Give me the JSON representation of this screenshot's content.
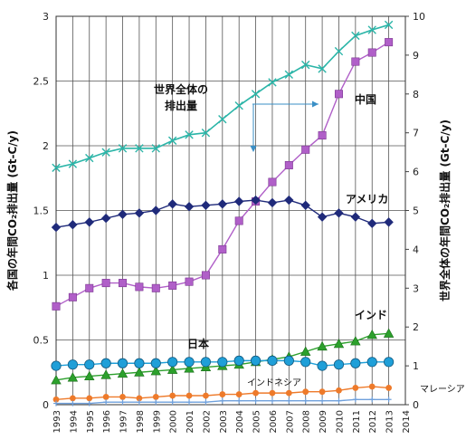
{
  "chart_data": {
    "type": "line",
    "title": "",
    "xlabel": "",
    "ylabel_left": "各国の年間CO₂排出量 (Gt-C/y)",
    "ylabel_right": "世界全体の年間CO₂排出量 (Gt-C/y)",
    "x": [
      1993,
      1994,
      1995,
      1996,
      1997,
      1998,
      1999,
      2000,
      2001,
      2002,
      2003,
      2004,
      2005,
      2006,
      2007,
      2008,
      2009,
      2010,
      2011,
      2012,
      2013
    ],
    "x_ticks": [
      "1993",
      "1994",
      "1995",
      "1996",
      "1997",
      "1998",
      "1999",
      "2000",
      "2001",
      "2002",
      "2003",
      "2004",
      "2005",
      "2006",
      "2007",
      "2008",
      "2009",
      "2010",
      "2011",
      "2012",
      "2013",
      "2014"
    ],
    "ylim_left": [
      0,
      3
    ],
    "yticks_left": [
      "0",
      "0.5",
      "1",
      "1.5",
      "2",
      "2.5",
      "3"
    ],
    "ylim_right": [
      0,
      10
    ],
    "yticks_right": [
      "0",
      "1",
      "2",
      "3",
      "4",
      "5",
      "6",
      "7",
      "8",
      "9",
      "10"
    ],
    "grid": true,
    "series": [
      {
        "name": "世界全体の排出量",
        "label_lines": [
          "世界全体の",
          "排出量"
        ],
        "axis": "right",
        "color": "#2bb5a8",
        "marker": "x",
        "values": [
          6.1,
          6.2,
          6.35,
          6.5,
          6.6,
          6.6,
          6.6,
          6.8,
          6.95,
          7.0,
          7.35,
          7.7,
          8.0,
          8.3,
          8.5,
          8.75,
          8.65,
          9.1,
          9.5,
          9.65,
          9.78
        ]
      },
      {
        "name": "中国",
        "axis": "left",
        "color": "#b05fc8",
        "marker": "square",
        "values": [
          0.76,
          0.83,
          0.9,
          0.94,
          0.94,
          0.91,
          0.9,
          0.92,
          0.95,
          1.0,
          1.2,
          1.42,
          1.57,
          1.72,
          1.85,
          1.97,
          2.08,
          2.4,
          2.65,
          2.72,
          2.8
        ]
      },
      {
        "name": "アメリカ",
        "axis": "left",
        "color": "#1f2a7a",
        "marker": "diamond",
        "values": [
          1.37,
          1.39,
          1.41,
          1.44,
          1.47,
          1.48,
          1.5,
          1.55,
          1.53,
          1.54,
          1.55,
          1.57,
          1.58,
          1.56,
          1.58,
          1.54,
          1.45,
          1.48,
          1.45,
          1.4,
          1.41
        ]
      },
      {
        "name": "インド",
        "axis": "left",
        "color": "#2ca02c",
        "marker": "triangle",
        "values": [
          0.19,
          0.21,
          0.22,
          0.23,
          0.24,
          0.25,
          0.26,
          0.27,
          0.28,
          0.29,
          0.3,
          0.31,
          0.33,
          0.35,
          0.37,
          0.41,
          0.45,
          0.47,
          0.49,
          0.54,
          0.55
        ]
      },
      {
        "name": "日本",
        "axis": "left",
        "color": "#1f9fd8",
        "marker": "circle",
        "values": [
          0.3,
          0.31,
          0.31,
          0.32,
          0.32,
          0.32,
          0.32,
          0.33,
          0.33,
          0.33,
          0.33,
          0.34,
          0.34,
          0.34,
          0.34,
          0.33,
          0.3,
          0.31,
          0.32,
          0.33,
          0.33
        ]
      },
      {
        "name": "インドネシア",
        "axis": "left",
        "color": "#ee7a2a",
        "marker": "dot",
        "values": [
          0.04,
          0.05,
          0.05,
          0.06,
          0.06,
          0.05,
          0.06,
          0.07,
          0.07,
          0.07,
          0.08,
          0.08,
          0.09,
          0.09,
          0.09,
          0.1,
          0.1,
          0.11,
          0.13,
          0.14,
          0.13
        ]
      },
      {
        "name": "マレーシア",
        "axis": "left",
        "color": "#6fa0dc",
        "marker": "plus",
        "values": [
          0.01,
          0.01,
          0.01,
          0.02,
          0.02,
          0.02,
          0.02,
          0.02,
          0.02,
          0.02,
          0.03,
          0.03,
          0.03,
          0.03,
          0.03,
          0.03,
          0.03,
          0.03,
          0.04,
          0.04,
          0.04
        ]
      }
    ],
    "annotations": [
      {
        "text": "中国",
        "series": "中国"
      },
      {
        "text": "アメリカ",
        "series": "アメリカ"
      },
      {
        "text": "インド",
        "series": "インド"
      },
      {
        "text": "日本",
        "series": "日本"
      },
      {
        "text": "インドネシア",
        "series": "インドネシア"
      },
      {
        "text": "マレーシア",
        "series": "マレーシア"
      }
    ],
    "legend_placement": "none"
  },
  "icons": {
    "world_arrow": "right-and-down-arrow-icon"
  }
}
